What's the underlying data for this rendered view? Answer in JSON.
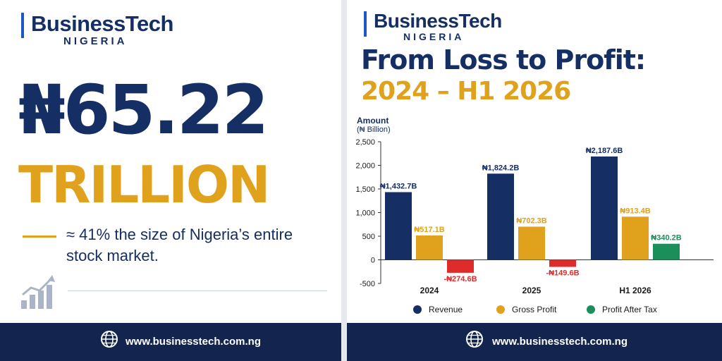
{
  "brand": {
    "name": "BusinessTech",
    "region": "NIGERIA",
    "accent": "#1f56c6"
  },
  "left": {
    "amount": "₦65.22",
    "unit": "TRILLION",
    "note": "≈ 41% the size of Nigeria’s entire stock market."
  },
  "footer": {
    "url": "www.businesstech.com.ng"
  },
  "right": {
    "title": "From Loss to Profit:",
    "subtitle": "2024 – H1 2026",
    "ylabel_line1": "Amount",
    "ylabel_line2": "(₦ Billion)"
  },
  "icons": {
    "growth": "growth-chart-icon",
    "globe": "globe-icon"
  },
  "colors": {
    "navy": "#152e63",
    "gold": "#e0a21c",
    "red": "#e02b2b",
    "green": "#1b8f5a"
  },
  "chart_data": {
    "type": "bar",
    "categories": [
      "2024",
      "2025",
      "H1 2026"
    ],
    "series": [
      {
        "name": "Revenue",
        "color": "#152e63",
        "values": [
          1432.7,
          1824.2,
          2187.6
        ],
        "labels": [
          "₦1,432.7B",
          "₦1,824.2B",
          "₦2,187.6B"
        ]
      },
      {
        "name": "Gross Profit",
        "color": "#e0a21c",
        "values": [
          517.1,
          702.3,
          913.4
        ],
        "labels": [
          "₦517.1B",
          "₦702.3B",
          "₦913.4B"
        ]
      },
      {
        "name": "Profit After Tax",
        "color": "#1b8f5a",
        "negative_color": "#e02b2b",
        "values": [
          -274.6,
          -149.6,
          340.2
        ],
        "labels": [
          "-₦274.6B",
          "-₦149.6B",
          "₦340.2B"
        ]
      }
    ],
    "ylim": [
      -500,
      2500
    ],
    "yticks": [
      -500,
      0,
      500,
      1000,
      1500,
      2000,
      2500
    ],
    "ytick_labels": [
      "-500",
      "0",
      "500",
      "1,000",
      "1,500",
      "2,000",
      "2,500"
    ],
    "ylabel": "Amount (₦ Billion)",
    "legend_position": "bottom",
    "grid": false
  }
}
